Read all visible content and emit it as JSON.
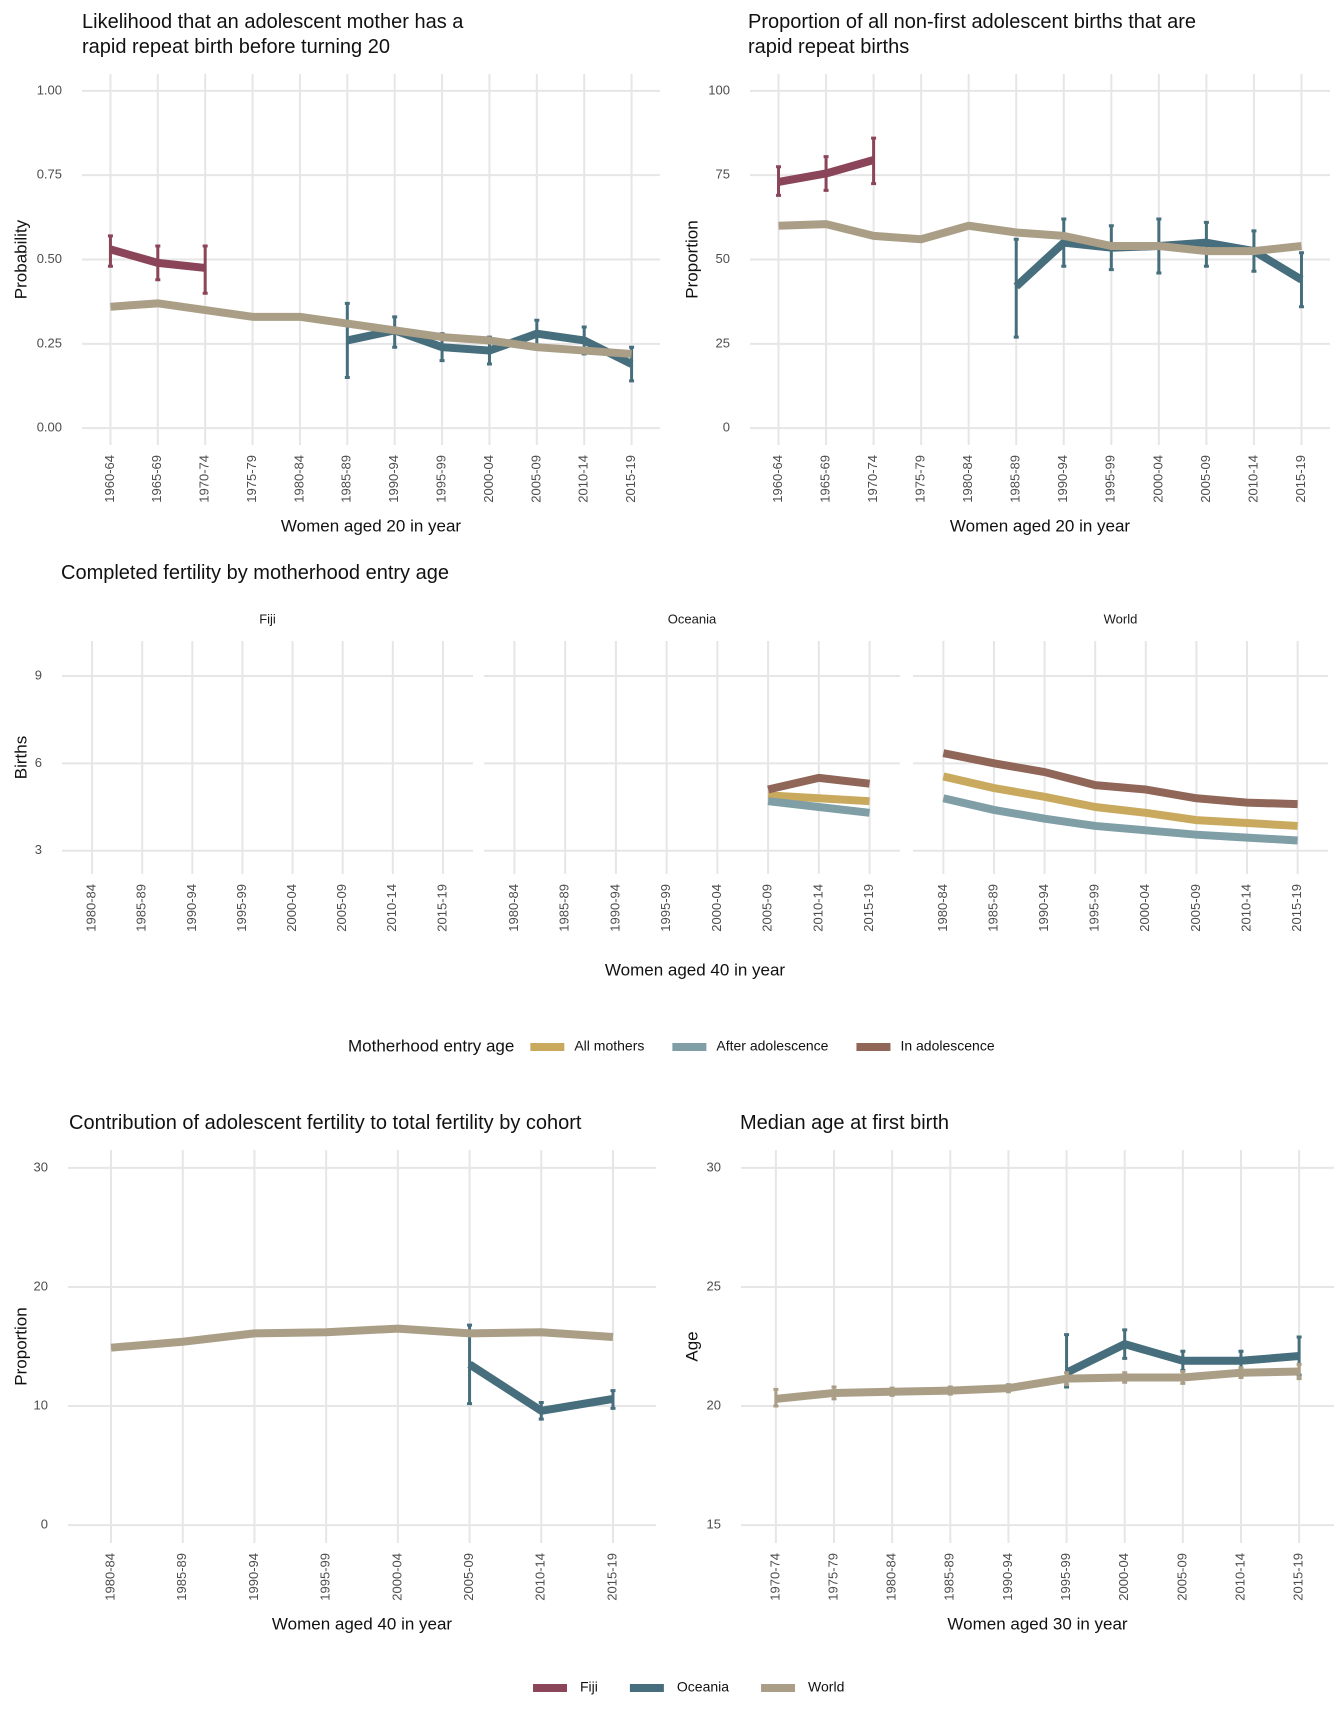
{
  "chart_data": [
    {
      "type": "line",
      "title": "Likelihood that an adolescent mother has a\nrapid repeat birth before turning 20",
      "x_label": "Women aged 20 in year",
      "y_label": "Probability",
      "categories": [
        "1960-64",
        "1965-69",
        "1970-74",
        "1975-79",
        "1980-84",
        "1985-89",
        "1990-94",
        "1995-99",
        "2000-04",
        "2005-09",
        "2010-14",
        "2015-19"
      ],
      "ylim": [
        -0.05,
        1.05
      ],
      "yticks": [
        {
          "value": 0,
          "label": "0.00"
        },
        0.25,
        {
          "value": 0.5,
          "label": "0.50"
        },
        0.75,
        {
          "value": 1,
          "label": "1.00"
        }
      ],
      "grid": true,
      "legend": "bottom",
      "series": [
        {
          "name": "Fiji",
          "color": "#8b4558",
          "values": [
            0.53,
            0.49,
            0.475,
            null,
            null,
            null,
            null,
            null,
            null,
            null,
            null,
            null
          ],
          "lower": [
            0.48,
            0.44,
            0.4,
            null,
            null,
            null,
            null,
            null,
            null,
            null,
            null,
            null
          ],
          "upper": [
            0.57,
            0.54,
            0.54,
            null,
            null,
            null,
            null,
            null,
            null,
            null,
            null,
            null
          ]
        },
        {
          "name": "Oceania",
          "color": "#466e7d",
          "values": [
            null,
            null,
            null,
            null,
            null,
            0.26,
            0.29,
            0.24,
            0.23,
            0.28,
            0.26,
            0.19
          ],
          "lower": [
            null,
            null,
            null,
            null,
            null,
            0.15,
            0.24,
            0.2,
            0.19,
            0.24,
            0.22,
            0.14
          ],
          "upper": [
            null,
            null,
            null,
            null,
            null,
            0.37,
            0.33,
            0.28,
            0.27,
            0.32,
            0.3,
            0.24
          ]
        },
        {
          "name": "World",
          "color": "#aa9e86",
          "values": [
            0.36,
            0.37,
            0.35,
            0.33,
            0.33,
            0.31,
            0.29,
            0.27,
            0.26,
            0.24,
            0.23,
            0.22
          ]
        }
      ]
    },
    {
      "type": "line",
      "title": "Proportion of all non-first adolescent births that are\nrapid repeat births",
      "x_label": "Women aged 20 in year",
      "y_label": "Proportion",
      "categories": [
        "1960-64",
        "1965-69",
        "1970-74",
        "1975-79",
        "1980-84",
        "1985-89",
        "1990-94",
        "1995-99",
        "2000-04",
        "2005-09",
        "2010-14",
        "2015-19"
      ],
      "ylim": [
        -5,
        105
      ],
      "yticks": [
        0,
        25,
        50,
        75,
        100
      ],
      "grid": true,
      "series": [
        {
          "name": "Fiji",
          "color": "#8b4558",
          "values": [
            73,
            75.5,
            79.5,
            null,
            null,
            null,
            null,
            null,
            null,
            null,
            null,
            null
          ],
          "lower": [
            69,
            70.5,
            72.5,
            null,
            null,
            null,
            null,
            null,
            null,
            null,
            null,
            null
          ],
          "upper": [
            77.5,
            80.5,
            86,
            null,
            null,
            null,
            null,
            null,
            null,
            null,
            null,
            null
          ]
        },
        {
          "name": "Oceania",
          "color": "#466e7d",
          "values": [
            null,
            null,
            null,
            null,
            null,
            42,
            55,
            53.5,
            54,
            55,
            52.5,
            44
          ],
          "lower": [
            null,
            null,
            null,
            null,
            null,
            27,
            48,
            47,
            46,
            48,
            46.5,
            36
          ],
          "upper": [
            null,
            null,
            null,
            null,
            null,
            56,
            62,
            60,
            62,
            61,
            58.5,
            52
          ]
        },
        {
          "name": "World",
          "color": "#aa9e86",
          "values": [
            60,
            60.5,
            57,
            56,
            60,
            58,
            57,
            54,
            54,
            52.5,
            52.5,
            54
          ]
        }
      ]
    },
    {
      "type": "facet-line",
      "title": "Completed fertility by motherhood entry age",
      "x_label": "Women aged 40 in year",
      "y_label": "Births",
      "legend_title": "Motherhood entry age",
      "categories": [
        "1980-84",
        "1985-89",
        "1990-94",
        "1995-99",
        "2000-04",
        "2005-09",
        "2010-14",
        "2015-19"
      ],
      "ylim": [
        2.2,
        10.2
      ],
      "yticks": [
        3,
        6,
        9
      ],
      "grid": true,
      "facets": [
        {
          "name": "Fiji",
          "series": [
            {
              "name": "All mothers",
              "color": "#c9a95d",
              "values": [
                null,
                null,
                null,
                null,
                null,
                null,
                null,
                null
              ]
            },
            {
              "name": "After adolescence",
              "color": "#7f9ea6",
              "values": [
                null,
                null,
                null,
                null,
                null,
                null,
                null,
                null
              ]
            },
            {
              "name": "In adolescence",
              "color": "#8f6657",
              "values": [
                null,
                null,
                null,
                null,
                null,
                null,
                null,
                null
              ]
            }
          ]
        },
        {
          "name": "Oceania",
          "series": [
            {
              "name": "All mothers",
              "color": "#c9a95d",
              "values": [
                null,
                null,
                null,
                null,
                null,
                4.9,
                4.8,
                4.7
              ]
            },
            {
              "name": "After adolescence",
              "color": "#7f9ea6",
              "values": [
                null,
                null,
                null,
                null,
                null,
                4.7,
                4.5,
                4.3
              ]
            },
            {
              "name": "In adolescence",
              "color": "#8f6657",
              "values": [
                null,
                null,
                null,
                null,
                null,
                5.1,
                5.5,
                5.3
              ]
            }
          ]
        },
        {
          "name": "World",
          "series": [
            {
              "name": "All mothers",
              "color": "#c9a95d",
              "values": [
                5.55,
                5.15,
                4.85,
                4.5,
                4.3,
                4.05,
                3.95,
                3.85
              ]
            },
            {
              "name": "After adolescence",
              "color": "#7f9ea6",
              "values": [
                4.8,
                4.4,
                4.1,
                3.85,
                3.7,
                3.55,
                3.45,
                3.35
              ]
            },
            {
              "name": "In adolescence",
              "color": "#8f6657",
              "values": [
                6.35,
                6.0,
                5.7,
                5.25,
                5.1,
                4.8,
                4.65,
                4.6
              ]
            }
          ]
        }
      ]
    },
    {
      "type": "line",
      "title": "Contribution of adolescent fertility to total fertility by cohort",
      "x_label": "Women aged 40 in year",
      "y_label": "Proportion",
      "categories": [
        "1980-84",
        "1985-89",
        "1990-94",
        "1995-99",
        "2000-04",
        "2005-09",
        "2010-14",
        "2015-19"
      ],
      "ylim": [
        -1.5,
        31.5
      ],
      "yticks": [
        0,
        10,
        20,
        30
      ],
      "grid": true,
      "series": [
        {
          "name": "Oceania",
          "color": "#466e7d",
          "values": [
            null,
            null,
            null,
            null,
            null,
            13.5,
            9.6,
            10.6
          ],
          "lower": [
            null,
            null,
            null,
            null,
            null,
            10.2,
            8.9,
            9.8
          ],
          "upper": [
            null,
            null,
            null,
            null,
            null,
            16.8,
            10.3,
            11.3
          ]
        },
        {
          "name": "World",
          "color": "#aa9e86",
          "values": [
            14.9,
            15.4,
            16.1,
            16.2,
            16.5,
            16.1,
            16.2,
            15.8
          ]
        }
      ]
    },
    {
      "type": "line",
      "title": "Median age at first birth",
      "x_label": "Women aged 30 in year",
      "y_label": "Age",
      "categories": [
        "1970-74",
        "1975-79",
        "1980-84",
        "1985-89",
        "1990-94",
        "1995-99",
        "2000-04",
        "2005-09",
        "2010-14",
        "2015-19"
      ],
      "ylim": [
        14.25,
        30.75
      ],
      "yticks": [
        15,
        20,
        25,
        30
      ],
      "grid": true,
      "series": [
        {
          "name": "Oceania",
          "color": "#466e7d",
          "values": [
            null,
            null,
            null,
            null,
            null,
            21.4,
            22.6,
            21.9,
            21.9,
            22.1
          ],
          "lower": [
            null,
            null,
            null,
            null,
            null,
            20.8,
            22.0,
            21.5,
            21.5,
            21.3
          ],
          "upper": [
            null,
            null,
            null,
            null,
            null,
            23.0,
            23.2,
            22.3,
            22.3,
            22.9
          ]
        },
        {
          "name": "World",
          "color": "#aa9e86",
          "values": [
            20.3,
            20.55,
            20.6,
            20.65,
            20.75,
            21.15,
            21.2,
            21.2,
            21.4,
            21.45
          ],
          "lower": [
            20.0,
            20.3,
            20.45,
            20.5,
            20.6,
            20.9,
            21.0,
            20.95,
            21.2,
            21.15
          ],
          "upper": [
            20.7,
            20.8,
            20.75,
            20.8,
            20.9,
            21.4,
            21.4,
            21.45,
            21.6,
            21.75
          ]
        }
      ]
    }
  ]
}
